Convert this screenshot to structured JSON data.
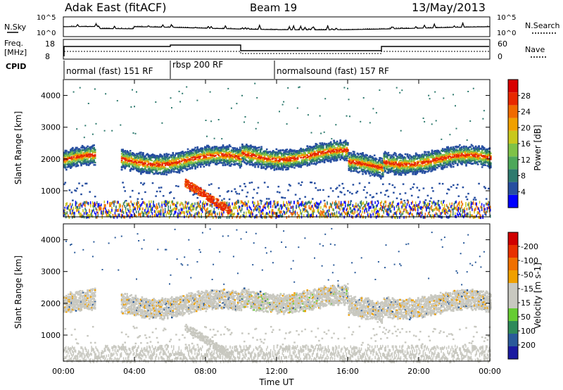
{
  "header": {
    "station": "Adak East (fitACF)",
    "beam": "Beam 19",
    "date": "13/May/2013"
  },
  "top_panel": {
    "left_label": "N.Sky",
    "left_ticks": [
      "10^5",
      "10^0"
    ],
    "right_label": "N.Search",
    "right_ticks": [
      "10^5",
      "10^0"
    ]
  },
  "freq_panel": {
    "left_label_1": "Freq.",
    "left_label_2": "[MHz]",
    "left_ticks": [
      "18",
      "8"
    ],
    "right_label": "Nave",
    "right_ticks": [
      "60",
      "0"
    ]
  },
  "cpid": {
    "label": "CPID",
    "modes": [
      {
        "name": "normal (fast) 151 RF",
        "start_hour": 0,
        "end_hour": 6
      },
      {
        "name": "rbsp 200 RF",
        "start_hour": 6,
        "end_hour": 12
      },
      {
        "name": "normalsound (fast) 157 RF",
        "start_hour": 12,
        "end_hour": 24
      }
    ]
  },
  "chart_data": [
    {
      "type": "heatmap",
      "ylabel": "Slant Range [km]",
      "xlabel": "",
      "x_ticks": [
        "00:00",
        "04:00",
        "08:00",
        "12:00",
        "16:00",
        "20:00",
        "00:00"
      ],
      "xlim": [
        0,
        24
      ],
      "ylim": [
        180,
        4500
      ],
      "y_ticks": [
        1000,
        2000,
        3000,
        4000
      ],
      "colorbar": {
        "label": "Power [dB]",
        "ticks": [
          "4",
          "8",
          "12",
          "16",
          "20",
          "24",
          "28"
        ],
        "colors": [
          "#0000ff",
          "#264ea0",
          "#2e7a6e",
          "#4ea85a",
          "#7fc247",
          "#c8c81e",
          "#f0a000",
          "#f06a00",
          "#e82800",
          "#d80000"
        ]
      }
    },
    {
      "type": "heatmap",
      "ylabel": "Slant Range [km]",
      "xlabel": "Time UT",
      "x_ticks": [
        "00:00",
        "04:00",
        "08:00",
        "12:00",
        "16:00",
        "20:00",
        "00:00"
      ],
      "xlim": [
        0,
        24
      ],
      "ylim": [
        180,
        4500
      ],
      "y_ticks": [
        1000,
        2000,
        3000,
        4000
      ],
      "colorbar": {
        "label": "Velocity [m s-1]",
        "ticks": [
          "200",
          "100",
          "50",
          "15",
          "-15",
          "-50",
          "-100",
          "-200"
        ],
        "colors": [
          "#1a1aa0",
          "#2a5a9a",
          "#2e8a5a",
          "#66cc33",
          "#c8c8c0",
          "#c8c8c0",
          "#f0a000",
          "#f07000",
          "#e83000",
          "#d00000"
        ]
      }
    }
  ]
}
